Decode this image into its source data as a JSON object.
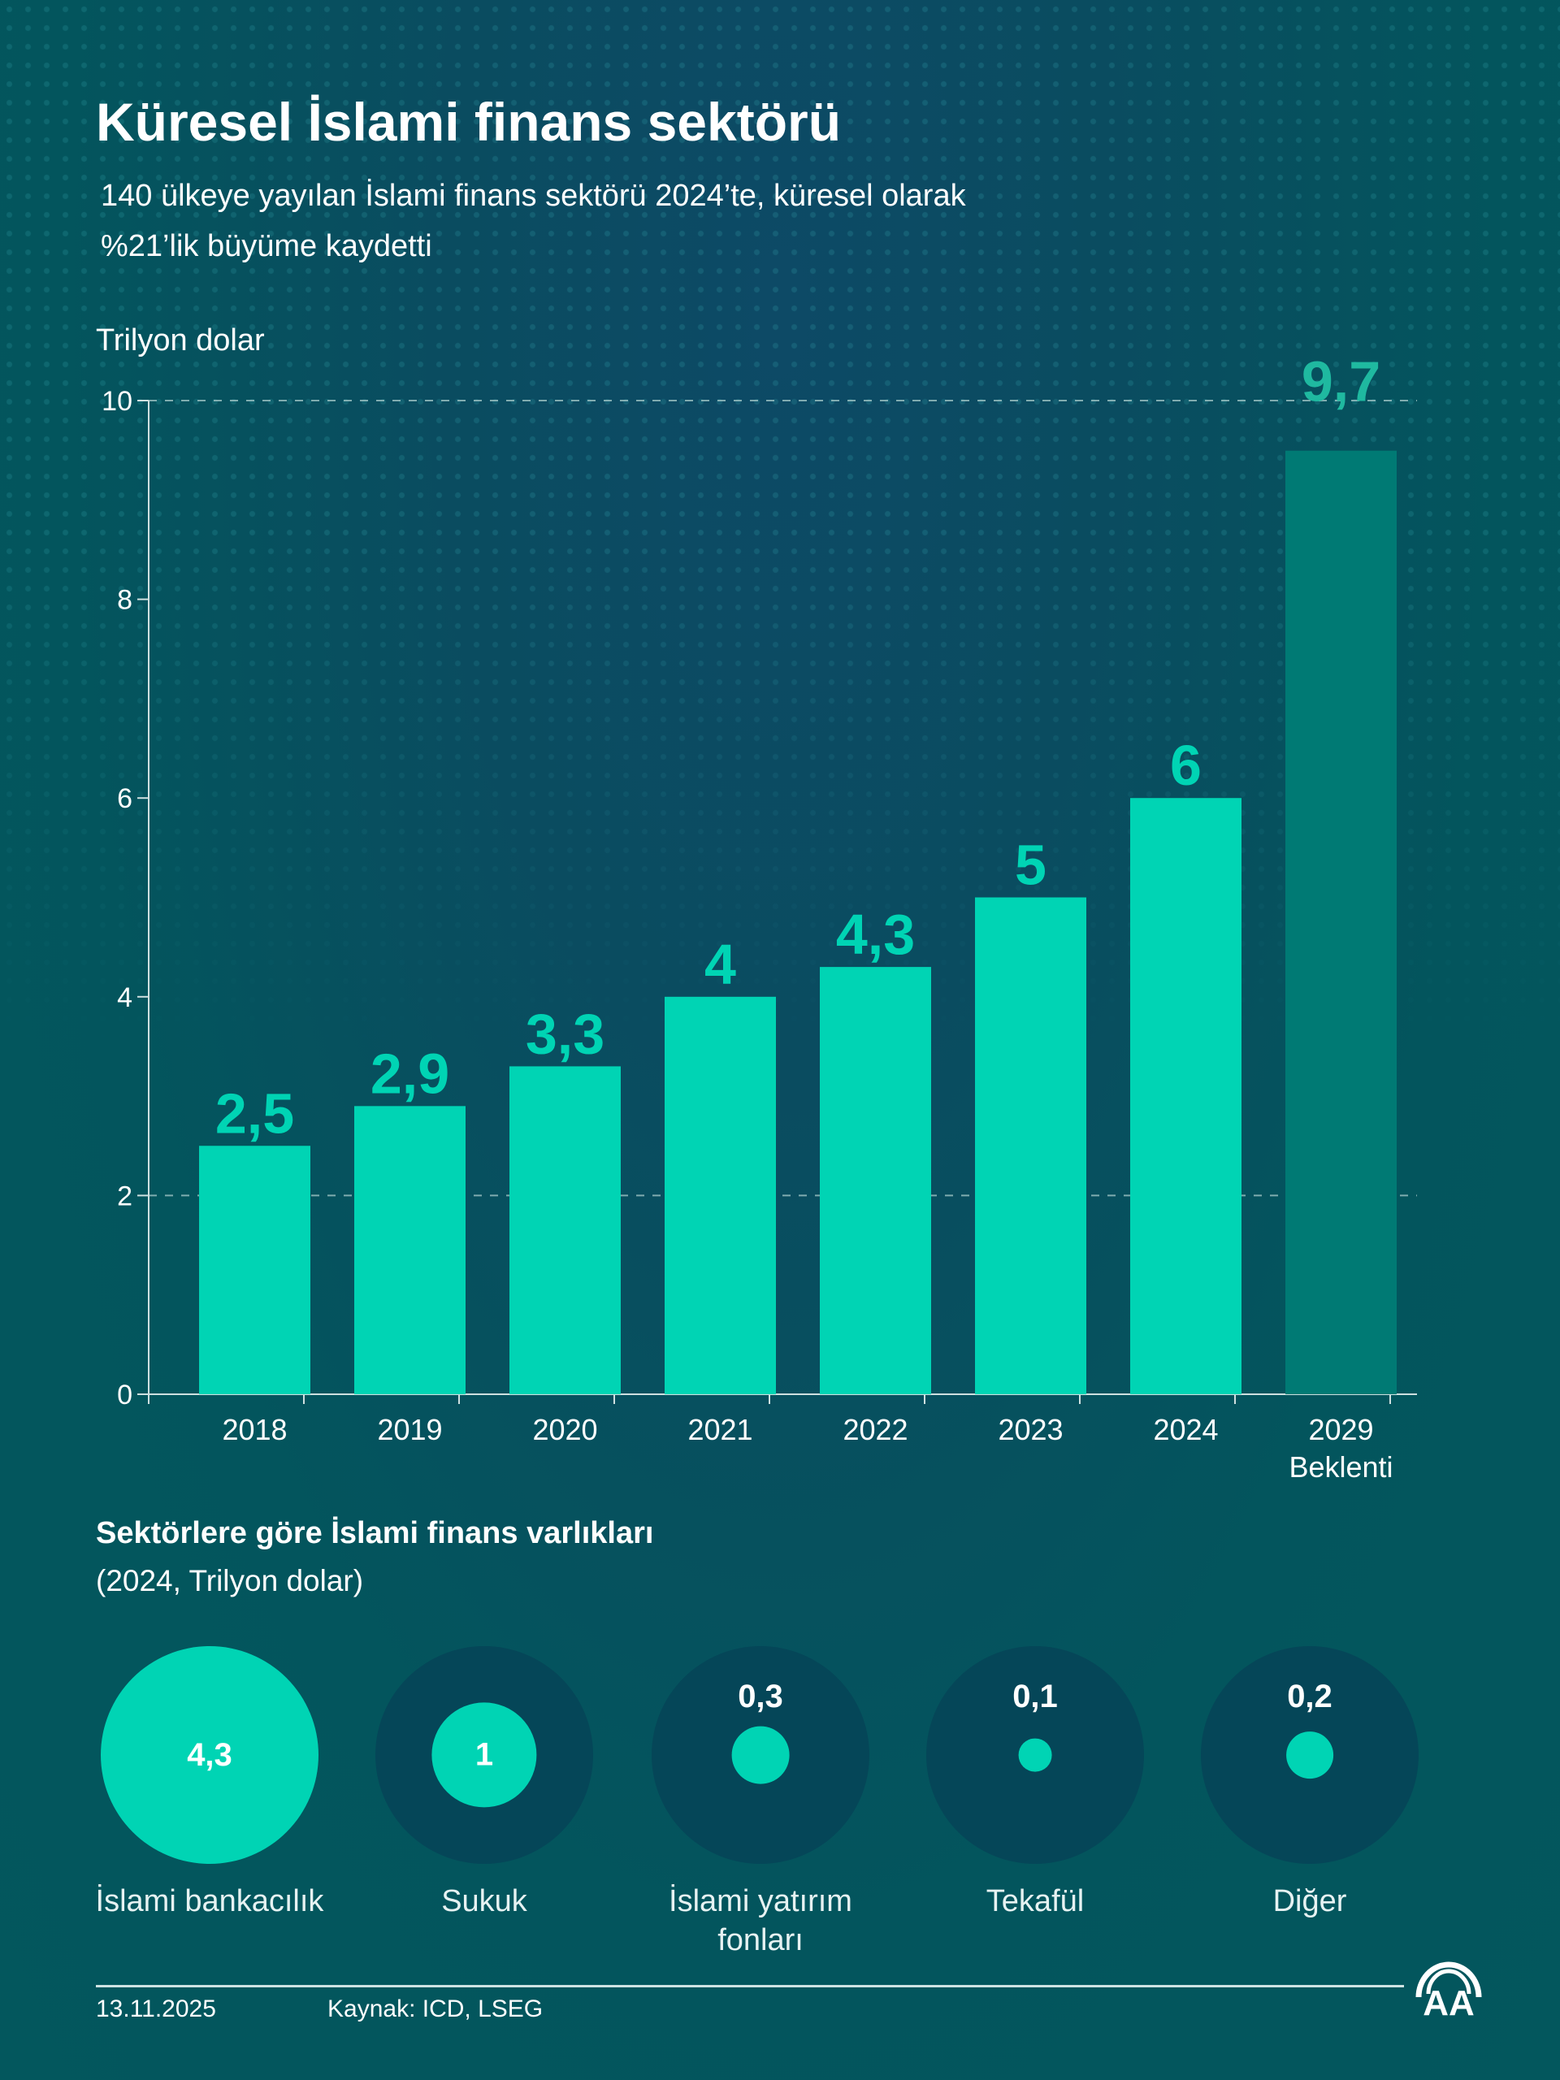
{
  "title": "Küresel İslami finans sektörü",
  "subtitle": [
    "140 ülkeye yayılan İslami finans sektörü 2024’te, küresel olarak",
    "%21’lik büyüme kaydetti"
  ],
  "colors": {
    "bar": "#00d4b4",
    "projection_bar": "#007a74",
    "projection_label": "#1fb9a0"
  },
  "chart_data": {
    "type": "bar",
    "ylabel": "Trilyon dolar",
    "ylim": [
      0,
      10
    ],
    "yticks": [
      "0",
      "2",
      "4",
      "6",
      "8",
      "10"
    ],
    "categories": [
      "2018",
      "2019",
      "2020",
      "2021",
      "2022",
      "2023",
      "2024",
      "2029"
    ],
    "category_sublabels": [
      "",
      "",
      "",
      "",
      "",
      "",
      "",
      "Beklenti"
    ],
    "values": [
      2.5,
      2.9,
      3.3,
      4,
      4.3,
      5,
      6,
      9.7
    ],
    "data_labels": [
      "2,5",
      "2,9",
      "3,3",
      "4",
      "4,3",
      "5",
      "6",
      "9,7"
    ],
    "projected": [
      false,
      false,
      false,
      false,
      false,
      false,
      false,
      true
    ],
    "grid": "dashed at 2 and 10"
  },
  "sectors": {
    "title": "Sektörlere göre İslami finans varlıkları",
    "subtitle": "(2024, Trilyon dolar)",
    "items": [
      {
        "label": "İslami bankacılık",
        "value": 4.3,
        "value_label": "4,3"
      },
      {
        "label": "Sukuk",
        "value": 1,
        "value_label": "1"
      },
      {
        "label": "İslami yatırım fonları",
        "value": 0.3,
        "value_label": "0,3"
      },
      {
        "label": "Tekafül",
        "value": 0.1,
        "value_label": "0,1"
      },
      {
        "label": "Diğer",
        "value": 0.2,
        "value_label": "0,2"
      }
    ]
  },
  "footer": {
    "date": "13.11.2025",
    "source": "Kaynak: ICD, LSEG",
    "logo": "AA"
  }
}
